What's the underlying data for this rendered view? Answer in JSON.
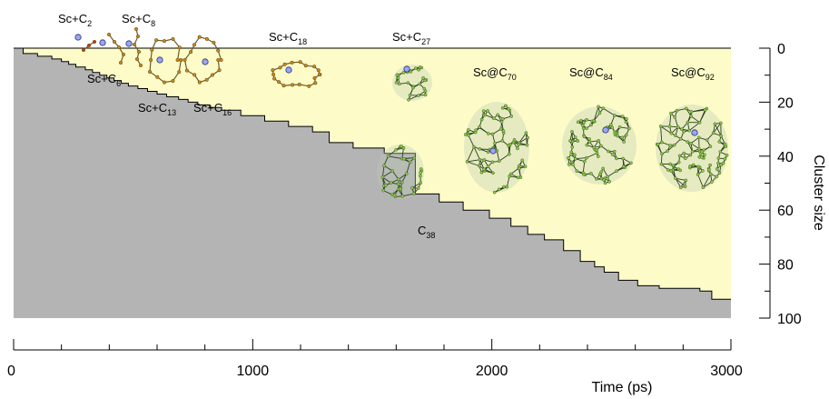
{
  "chart_data": {
    "type": "area",
    "xlabel": "Time (ps)",
    "ylabel": "Cluster size",
    "xlim": [
      0,
      3000
    ],
    "ylim": [
      0,
      100
    ],
    "x_ticks": [
      "0",
      "1000",
      "2000",
      "3000"
    ],
    "y_ticks": [
      "0",
      "20",
      "40",
      "60",
      "80",
      "100"
    ],
    "fill_colors": {
      "cluster": "#fdfcc8",
      "remaining": "#b4b4b4"
    },
    "series": [
      {
        "x": [
          0,
          40,
          100,
          160,
          200,
          230,
          260,
          300,
          330,
          360,
          390,
          420,
          450,
          480,
          520,
          560,
          600,
          640,
          690,
          730,
          770,
          820,
          870,
          950,
          1050,
          1150,
          1250,
          1320,
          1420,
          1550,
          1680,
          1780,
          1880,
          1990,
          2080,
          2150,
          2220,
          2300,
          2370,
          2430,
          2470,
          2530,
          2610,
          2700,
          2800,
          2870,
          2920,
          3000
        ],
        "y": [
          0,
          2,
          3,
          4,
          5,
          6,
          7,
          8,
          9,
          10,
          11,
          12,
          13,
          14,
          15,
          16,
          17,
          18,
          19,
          20,
          21,
          22,
          23,
          25,
          27,
          29,
          31,
          35,
          37,
          39,
          54,
          57,
          60,
          63,
          66,
          69,
          71,
          75,
          79,
          81,
          83,
          86,
          88,
          89,
          89,
          90,
          93,
          93
        ]
      }
    ],
    "annotations": [
      {
        "base": "Sc+C",
        "sub": "2"
      },
      {
        "base": "Sc+C",
        "sub": "8"
      },
      {
        "base": "Sc+C",
        "sub": "6"
      },
      {
        "base": "Sc+C",
        "sub": "13"
      },
      {
        "base": "Sc+C",
        "sub": "16"
      },
      {
        "base": "Sc+C",
        "sub": "18"
      },
      {
        "base": "Sc+C",
        "sub": "27"
      },
      {
        "base": "C",
        "sub": "38"
      },
      {
        "base": "Sc@C",
        "sub": "70"
      },
      {
        "base": "Sc@C",
        "sub": "84"
      },
      {
        "base": "Sc@C",
        "sub": "92"
      }
    ]
  }
}
